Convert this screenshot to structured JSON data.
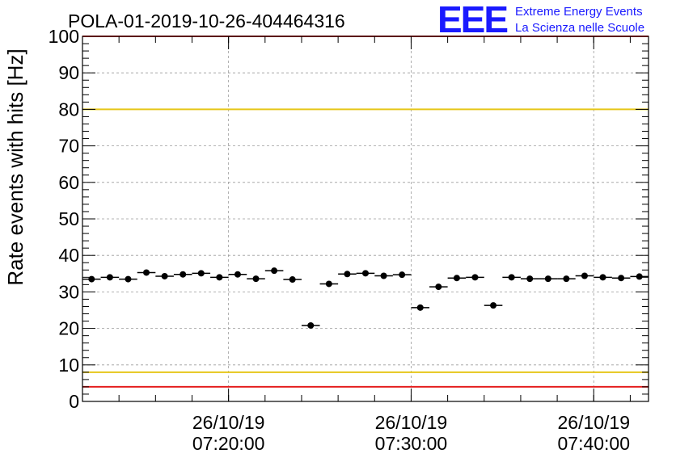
{
  "chart_data": {
    "type": "scatter",
    "title": "POLA-01-2019-10-26-404464316",
    "ylabel": "Rate events with hits [Hz]",
    "xlabel": "",
    "ylim": [
      0,
      100
    ],
    "yticks": [
      0,
      10,
      20,
      30,
      40,
      50,
      60,
      70,
      80,
      90,
      100
    ],
    "xticks": [
      {
        "date": "26/10/19",
        "time": "07:20:00"
      },
      {
        "date": "26/10/19",
        "time": "07:30:00"
      },
      {
        "date": "26/10/19",
        "time": "07:40:00"
      }
    ],
    "grid": true,
    "x_start": "07:12:00",
    "x_end": "07:43:00",
    "bin_width_minutes": 1,
    "points": [
      {
        "t": "07:12:30",
        "y": 33.5
      },
      {
        "t": "07:13:30",
        "y": 34.0
      },
      {
        "t": "07:14:30",
        "y": 33.5
      },
      {
        "t": "07:15:30",
        "y": 35.3
      },
      {
        "t": "07:16:30",
        "y": 34.3
      },
      {
        "t": "07:17:30",
        "y": 34.8
      },
      {
        "t": "07:18:30",
        "y": 35.1
      },
      {
        "t": "07:19:30",
        "y": 34.0
      },
      {
        "t": "07:20:30",
        "y": 34.8
      },
      {
        "t": "07:21:30",
        "y": 33.6
      },
      {
        "t": "07:22:30",
        "y": 35.8
      },
      {
        "t": "07:23:30",
        "y": 33.4
      },
      {
        "t": "07:24:30",
        "y": 20.8
      },
      {
        "t": "07:25:30",
        "y": 32.2
      },
      {
        "t": "07:26:30",
        "y": 34.9
      },
      {
        "t": "07:27:30",
        "y": 35.1
      },
      {
        "t": "07:28:30",
        "y": 34.4
      },
      {
        "t": "07:29:30",
        "y": 34.7
      },
      {
        "t": "07:30:30",
        "y": 25.7
      },
      {
        "t": "07:31:30",
        "y": 31.4
      },
      {
        "t": "07:32:30",
        "y": 33.8
      },
      {
        "t": "07:33:30",
        "y": 34.0
      },
      {
        "t": "07:34:30",
        "y": 26.3
      },
      {
        "t": "07:35:30",
        "y": 34.0
      },
      {
        "t": "07:36:30",
        "y": 33.6
      },
      {
        "t": "07:37:30",
        "y": 33.6
      },
      {
        "t": "07:38:30",
        "y": 33.6
      },
      {
        "t": "07:39:30",
        "y": 34.4
      },
      {
        "t": "07:40:30",
        "y": 34.0
      },
      {
        "t": "07:41:30",
        "y": 33.8
      },
      {
        "t": "07:42:30",
        "y": 34.2
      }
    ],
    "reference_lines": [
      {
        "y": 100,
        "color": "#e41e1e"
      },
      {
        "y": 80,
        "color": "#e6c619"
      },
      {
        "y": 8,
        "color": "#e6c619"
      },
      {
        "y": 4,
        "color": "#e41e1e"
      }
    ],
    "marker_color": "#000000"
  },
  "logo": {
    "text": "EEE",
    "line1": "Extreme Energy Events",
    "line2": "La Scienza nelle Scuole",
    "color": "#1a1aff"
  }
}
